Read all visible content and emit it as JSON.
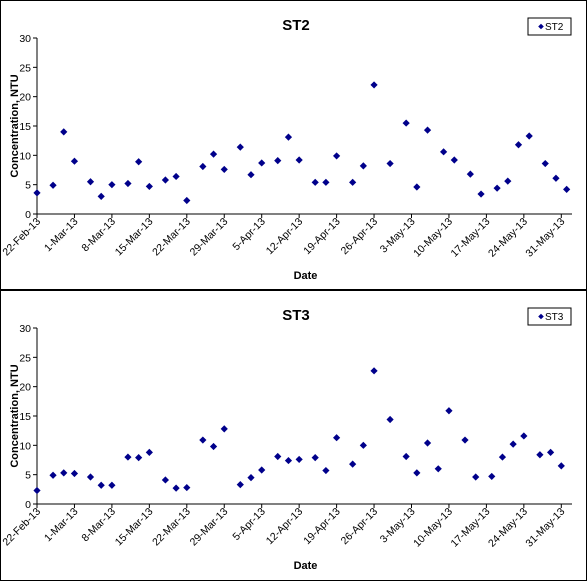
{
  "chart_data": [
    {
      "type": "scatter",
      "title": "ST2",
      "xlabel": "Date",
      "ylabel": "Concentration, NTU",
      "ylim": [
        0,
        30
      ],
      "yticks": [
        0,
        5,
        10,
        15,
        20,
        25,
        30
      ],
      "xlim": [
        "2013-02-22",
        "2013-06-02"
      ],
      "xtick_labels": [
        "22-Feb-13",
        "1-Mar-13",
        "8-Mar-13",
        "15-Mar-13",
        "22-Mar-13",
        "29-Mar-13",
        "5-Apr-13",
        "12-Apr-13",
        "19-Apr-13",
        "26-Apr-13",
        "3-May-13",
        "10-May-13",
        "17-May-13",
        "24-May-13",
        "31-May-13"
      ],
      "legend": "top-right",
      "grid": false,
      "marker_color": "#00008B",
      "series": [
        {
          "name": "ST2",
          "points": [
            [
              "2013-02-22",
              3.6
            ],
            [
              "2013-02-25",
              4.9
            ],
            [
              "2013-02-27",
              14.0
            ],
            [
              "2013-03-01",
              9.0
            ],
            [
              "2013-03-04",
              5.5
            ],
            [
              "2013-03-06",
              3.0
            ],
            [
              "2013-03-08",
              5.0
            ],
            [
              "2013-03-11",
              5.2
            ],
            [
              "2013-03-13",
              8.9
            ],
            [
              "2013-03-15",
              4.7
            ],
            [
              "2013-03-18",
              5.8
            ],
            [
              "2013-03-20",
              6.4
            ],
            [
              "2013-03-22",
              2.3
            ],
            [
              "2013-03-25",
              8.1
            ],
            [
              "2013-03-27",
              10.2
            ],
            [
              "2013-03-29",
              7.6
            ],
            [
              "2013-04-01",
              11.4
            ],
            [
              "2013-04-03",
              6.7
            ],
            [
              "2013-04-05",
              8.7
            ],
            [
              "2013-04-08",
              9.1
            ],
            [
              "2013-04-10",
              13.1
            ],
            [
              "2013-04-12",
              9.2
            ],
            [
              "2013-04-15",
              5.4
            ],
            [
              "2013-04-17",
              5.4
            ],
            [
              "2013-04-19",
              9.9
            ],
            [
              "2013-04-22",
              5.4
            ],
            [
              "2013-04-24",
              8.2
            ],
            [
              "2013-04-26",
              22.0
            ],
            [
              "2013-04-29",
              8.6
            ],
            [
              "2013-05-02",
              15.5
            ],
            [
              "2013-05-04",
              4.6
            ],
            [
              "2013-05-06",
              14.3
            ],
            [
              "2013-05-09",
              10.6
            ],
            [
              "2013-05-11",
              9.2
            ],
            [
              "2013-05-14",
              6.8
            ],
            [
              "2013-05-16",
              3.4
            ],
            [
              "2013-05-19",
              4.4
            ],
            [
              "2013-05-21",
              5.6
            ],
            [
              "2013-05-23",
              11.8
            ],
            [
              "2013-05-25",
              13.3
            ],
            [
              "2013-05-28",
              8.6
            ],
            [
              "2013-05-30",
              6.1
            ],
            [
              "2013-06-01",
              4.2
            ]
          ]
        }
      ]
    },
    {
      "type": "scatter",
      "title": "ST3",
      "xlabel": "Date",
      "ylabel": "Concentration, NTU",
      "ylim": [
        0,
        30
      ],
      "yticks": [
        0,
        5,
        10,
        15,
        20,
        25,
        30
      ],
      "xlim": [
        "2013-02-22",
        "2013-06-02"
      ],
      "xtick_labels": [
        "22-Feb-13",
        "1-Mar-13",
        "8-Mar-13",
        "15-Mar-13",
        "22-Mar-13",
        "29-Mar-13",
        "5-Apr-13",
        "12-Apr-13",
        "19-Apr-13",
        "26-Apr-13",
        "3-May-13",
        "10-May-13",
        "17-May-13",
        "24-May-13",
        "31-May-13"
      ],
      "legend": "top-right",
      "grid": false,
      "marker_color": "#00008B",
      "series": [
        {
          "name": "ST3",
          "points": [
            [
              "2013-02-22",
              2.3
            ],
            [
              "2013-02-25",
              4.9
            ],
            [
              "2013-02-27",
              5.3
            ],
            [
              "2013-03-01",
              5.2
            ],
            [
              "2013-03-04",
              4.6
            ],
            [
              "2013-03-06",
              3.2
            ],
            [
              "2013-03-08",
              3.2
            ],
            [
              "2013-03-11",
              8.0
            ],
            [
              "2013-03-13",
              7.9
            ],
            [
              "2013-03-15",
              8.8
            ],
            [
              "2013-03-18",
              4.1
            ],
            [
              "2013-03-20",
              2.7
            ],
            [
              "2013-03-22",
              2.8
            ],
            [
              "2013-03-25",
              10.9
            ],
            [
              "2013-03-27",
              9.8
            ],
            [
              "2013-03-29",
              12.8
            ],
            [
              "2013-04-01",
              3.3
            ],
            [
              "2013-04-03",
              4.5
            ],
            [
              "2013-04-05",
              5.8
            ],
            [
              "2013-04-08",
              8.1
            ],
            [
              "2013-04-10",
              7.4
            ],
            [
              "2013-04-12",
              7.6
            ],
            [
              "2013-04-15",
              7.9
            ],
            [
              "2013-04-17",
              5.7
            ],
            [
              "2013-04-19",
              11.3
            ],
            [
              "2013-04-22",
              6.8
            ],
            [
              "2013-04-24",
              10.0
            ],
            [
              "2013-04-26",
              22.7
            ],
            [
              "2013-04-29",
              14.4
            ],
            [
              "2013-05-02",
              8.1
            ],
            [
              "2013-05-04",
              5.3
            ],
            [
              "2013-05-06",
              10.4
            ],
            [
              "2013-05-08",
              6.0
            ],
            [
              "2013-05-10",
              15.9
            ],
            [
              "2013-05-13",
              10.9
            ],
            [
              "2013-05-15",
              4.6
            ],
            [
              "2013-05-18",
              4.7
            ],
            [
              "2013-05-20",
              8.0
            ],
            [
              "2013-05-22",
              10.2
            ],
            [
              "2013-05-24",
              11.6
            ],
            [
              "2013-05-27",
              8.4
            ],
            [
              "2013-05-29",
              8.8
            ],
            [
              "2013-05-31",
              6.5
            ]
          ]
        }
      ]
    }
  ]
}
